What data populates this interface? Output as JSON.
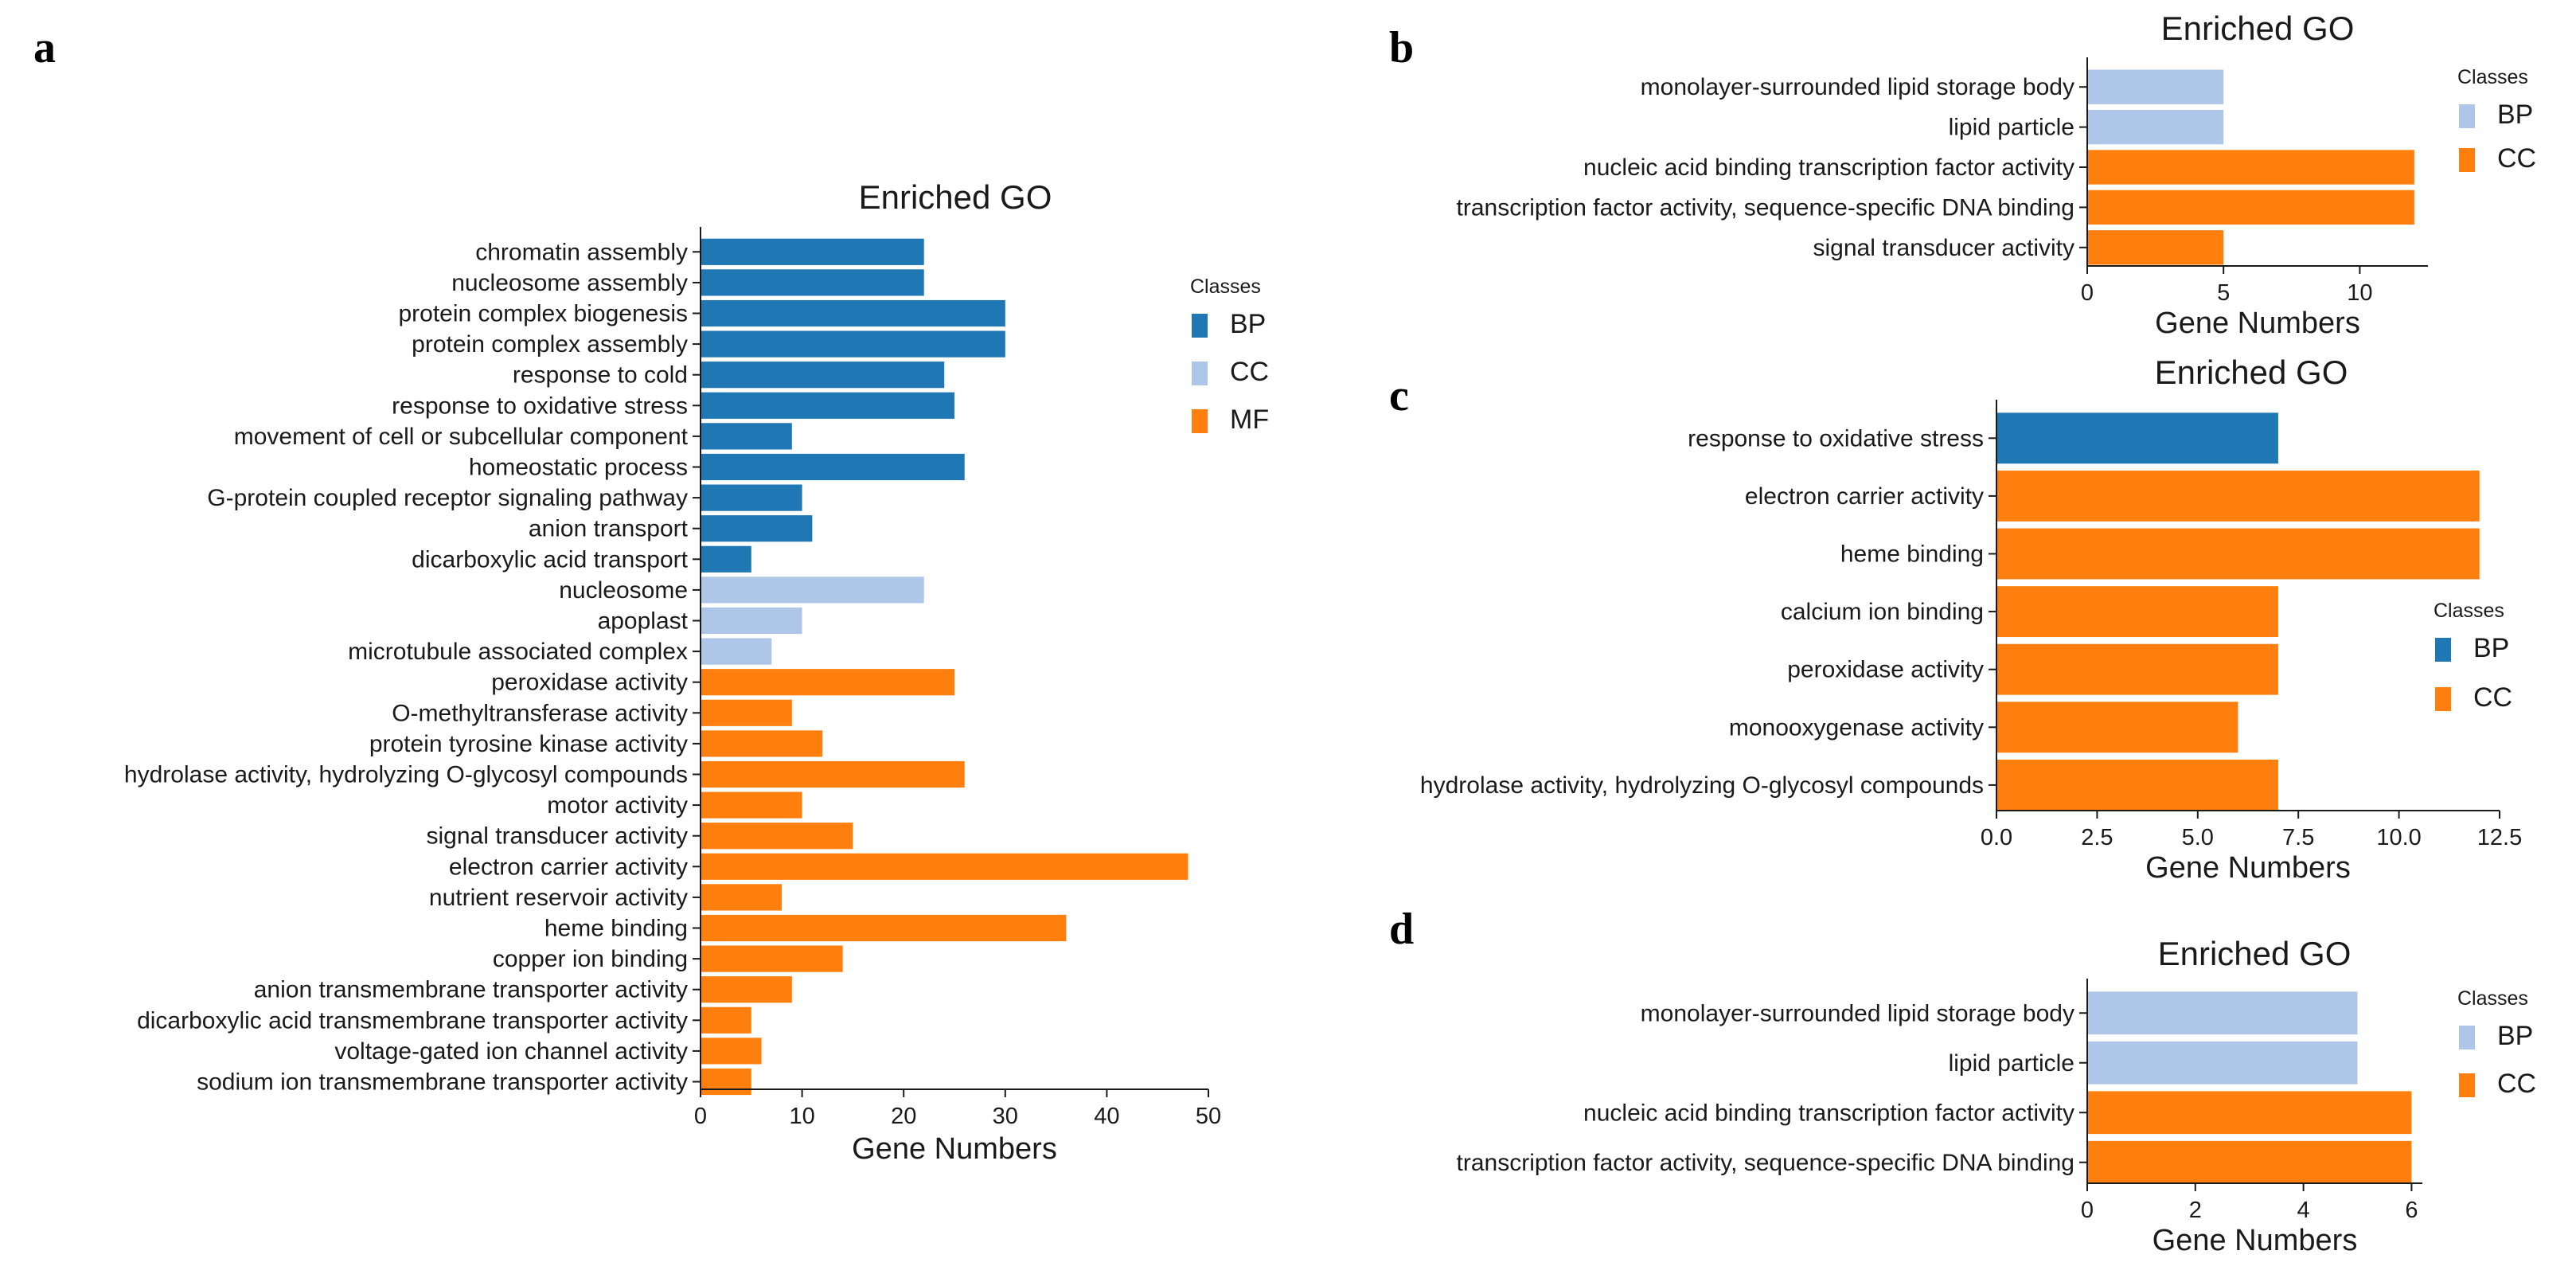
{
  "panel_labels": [
    "a",
    "b",
    "c",
    "d"
  ],
  "chart_data": [
    {
      "panel": "a",
      "type": "bar",
      "orientation": "horizontal",
      "title": "Enriched GO",
      "xlabel": "Gene Numbers",
      "ylabel": "",
      "xlim": [
        0,
        50
      ],
      "xticks": [
        "0",
        "10",
        "20",
        "30",
        "40",
        "50"
      ],
      "legend": {
        "title": "Classes",
        "position": "right",
        "entries": [
          "BP",
          "CC",
          "MF"
        ]
      },
      "colors": {
        "BP": "#1f77b4",
        "CC": "#aec7e8",
        "MF": "#ff7f0e"
      },
      "categories": [
        "chromatin assembly",
        "nucleosome assembly",
        "protein complex biogenesis",
        "protein complex assembly",
        "response to cold",
        "response to oxidative stress",
        "movement of cell or subcellular component",
        "homeostatic process",
        "G-protein coupled receptor signaling pathway",
        "anion transport",
        "dicarboxylic acid transport",
        "nucleosome",
        "apoplast",
        "microtubule associated complex",
        "peroxidase activity",
        "O-methyltransferase activity",
        "protein tyrosine kinase activity",
        "hydrolase activity, hydrolyzing O-glycosyl compounds",
        "motor activity",
        "signal transducer activity",
        "electron carrier activity",
        "nutrient reservoir activity",
        "heme binding",
        "copper ion binding",
        "anion transmembrane transporter activity",
        "dicarboxylic acid transmembrane transporter activity",
        "voltage-gated ion channel activity",
        "sodium ion transmembrane transporter activity"
      ],
      "values": [
        22,
        22,
        30,
        30,
        24,
        25,
        9,
        26,
        10,
        11,
        5,
        22,
        10,
        7,
        25,
        9,
        12,
        26,
        10,
        15,
        48,
        8,
        36,
        14,
        9,
        5,
        6,
        5
      ],
      "classes": [
        "BP",
        "BP",
        "BP",
        "BP",
        "BP",
        "BP",
        "BP",
        "BP",
        "BP",
        "BP",
        "BP",
        "CC",
        "CC",
        "CC",
        "MF",
        "MF",
        "MF",
        "MF",
        "MF",
        "MF",
        "MF",
        "MF",
        "MF",
        "MF",
        "MF",
        "MF",
        "MF",
        "MF"
      ]
    },
    {
      "panel": "b",
      "type": "bar",
      "orientation": "horizontal",
      "title": "Enriched GO",
      "xlabel": "Gene Numbers",
      "ylabel": "",
      "xlim": [
        0,
        12.5
      ],
      "xticks": [
        "0",
        "5",
        "10"
      ],
      "legend": {
        "title": "Classes",
        "position": "right",
        "entries": [
          "BP",
          "CC"
        ]
      },
      "colors": {
        "BP": "#aec7e8",
        "CC": "#ff7f0e"
      },
      "categories": [
        "monolayer-surrounded lipid storage body",
        "lipid particle",
        "nucleic acid binding transcription factor activity",
        "transcription factor activity, sequence-specific DNA binding",
        "signal transducer activity"
      ],
      "values": [
        5,
        5,
        12,
        12,
        5
      ],
      "classes": [
        "BP",
        "BP",
        "CC",
        "CC",
        "CC"
      ]
    },
    {
      "panel": "c",
      "type": "bar",
      "orientation": "horizontal",
      "title": "Enriched GO",
      "xlabel": "Gene Numbers",
      "ylabel": "",
      "xlim": [
        0,
        12.5
      ],
      "xticks": [
        "0.0",
        "2.5",
        "5.0",
        "7.5",
        "10.0",
        "12.5"
      ],
      "legend": {
        "title": "Classes",
        "position": "right",
        "entries": [
          "BP",
          "CC"
        ]
      },
      "colors": {
        "BP": "#1f77b4",
        "CC": "#ff7f0e"
      },
      "categories": [
        "response to oxidative stress",
        "electron carrier activity",
        "heme binding",
        "calcium ion binding",
        "peroxidase activity",
        "monooxygenase activity",
        "hydrolase activity, hydrolyzing O-glycosyl compounds"
      ],
      "values": [
        7,
        12,
        12,
        7,
        7,
        6,
        7
      ],
      "classes": [
        "BP",
        "CC",
        "CC",
        "CC",
        "CC",
        "CC",
        "CC"
      ]
    },
    {
      "panel": "d",
      "type": "bar",
      "orientation": "horizontal",
      "title": "Enriched GO",
      "xlabel": "Gene Numbers",
      "ylabel": "",
      "xlim": [
        0,
        6.2
      ],
      "xticks": [
        "0",
        "2",
        "4",
        "6"
      ],
      "legend": {
        "title": "Classes",
        "position": "right",
        "entries": [
          "BP",
          "CC"
        ]
      },
      "colors": {
        "BP": "#aec7e8",
        "CC": "#ff7f0e"
      },
      "categories": [
        "monolayer-surrounded lipid storage body",
        "lipid particle",
        "nucleic acid binding transcription factor activity",
        "transcription factor activity, sequence-specific DNA binding"
      ],
      "values": [
        5,
        5,
        6,
        6
      ],
      "classes": [
        "BP",
        "BP",
        "CC",
        "CC"
      ]
    }
  ]
}
